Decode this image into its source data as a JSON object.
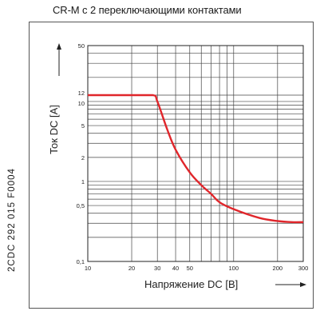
{
  "side_code": "2CDC 292 015 F0004",
  "chart_data": {
    "type": "line",
    "title": "CR-M с 2 переключающими контактами",
    "xlabel": "Напряжение DC [B]",
    "ylabel": "Ток DC [A]",
    "xscale": "log",
    "yscale": "log",
    "xlim": [
      10,
      300
    ],
    "ylim": [
      0.1,
      50
    ],
    "grid": true,
    "x_ticks": [
      {
        "value": 10,
        "label": "10"
      },
      {
        "value": 20,
        "label": "20"
      },
      {
        "value": 30,
        "label": "30"
      },
      {
        "value": 40,
        "label": "40"
      },
      {
        "value": 50,
        "label": "50"
      },
      {
        "value": 100,
        "label": "100"
      },
      {
        "value": 200,
        "label": "200"
      },
      {
        "value": 300,
        "label": "300"
      }
    ],
    "y_ticks": [
      {
        "value": 0.1,
        "label": "0,1"
      },
      {
        "value": 0.5,
        "label": "0,5"
      },
      {
        "value": 1,
        "label": "1"
      },
      {
        "value": 2,
        "label": "2"
      },
      {
        "value": 5,
        "label": "5"
      },
      {
        "value": 10,
        "label": "10"
      },
      {
        "value": 12,
        "label": "12"
      },
      {
        "value": 50,
        "label": "50"
      }
    ],
    "series": [
      {
        "color": "#e0262b",
        "x": [
          10,
          20,
          28,
          30,
          35,
          40,
          50,
          60,
          70,
          80,
          100,
          150,
          200,
          250,
          300
        ],
        "y": [
          12,
          12,
          12,
          10,
          4.5,
          2.5,
          1.3,
          0.9,
          0.7,
          0.55,
          0.45,
          0.35,
          0.32,
          0.31,
          0.31
        ]
      }
    ]
  }
}
